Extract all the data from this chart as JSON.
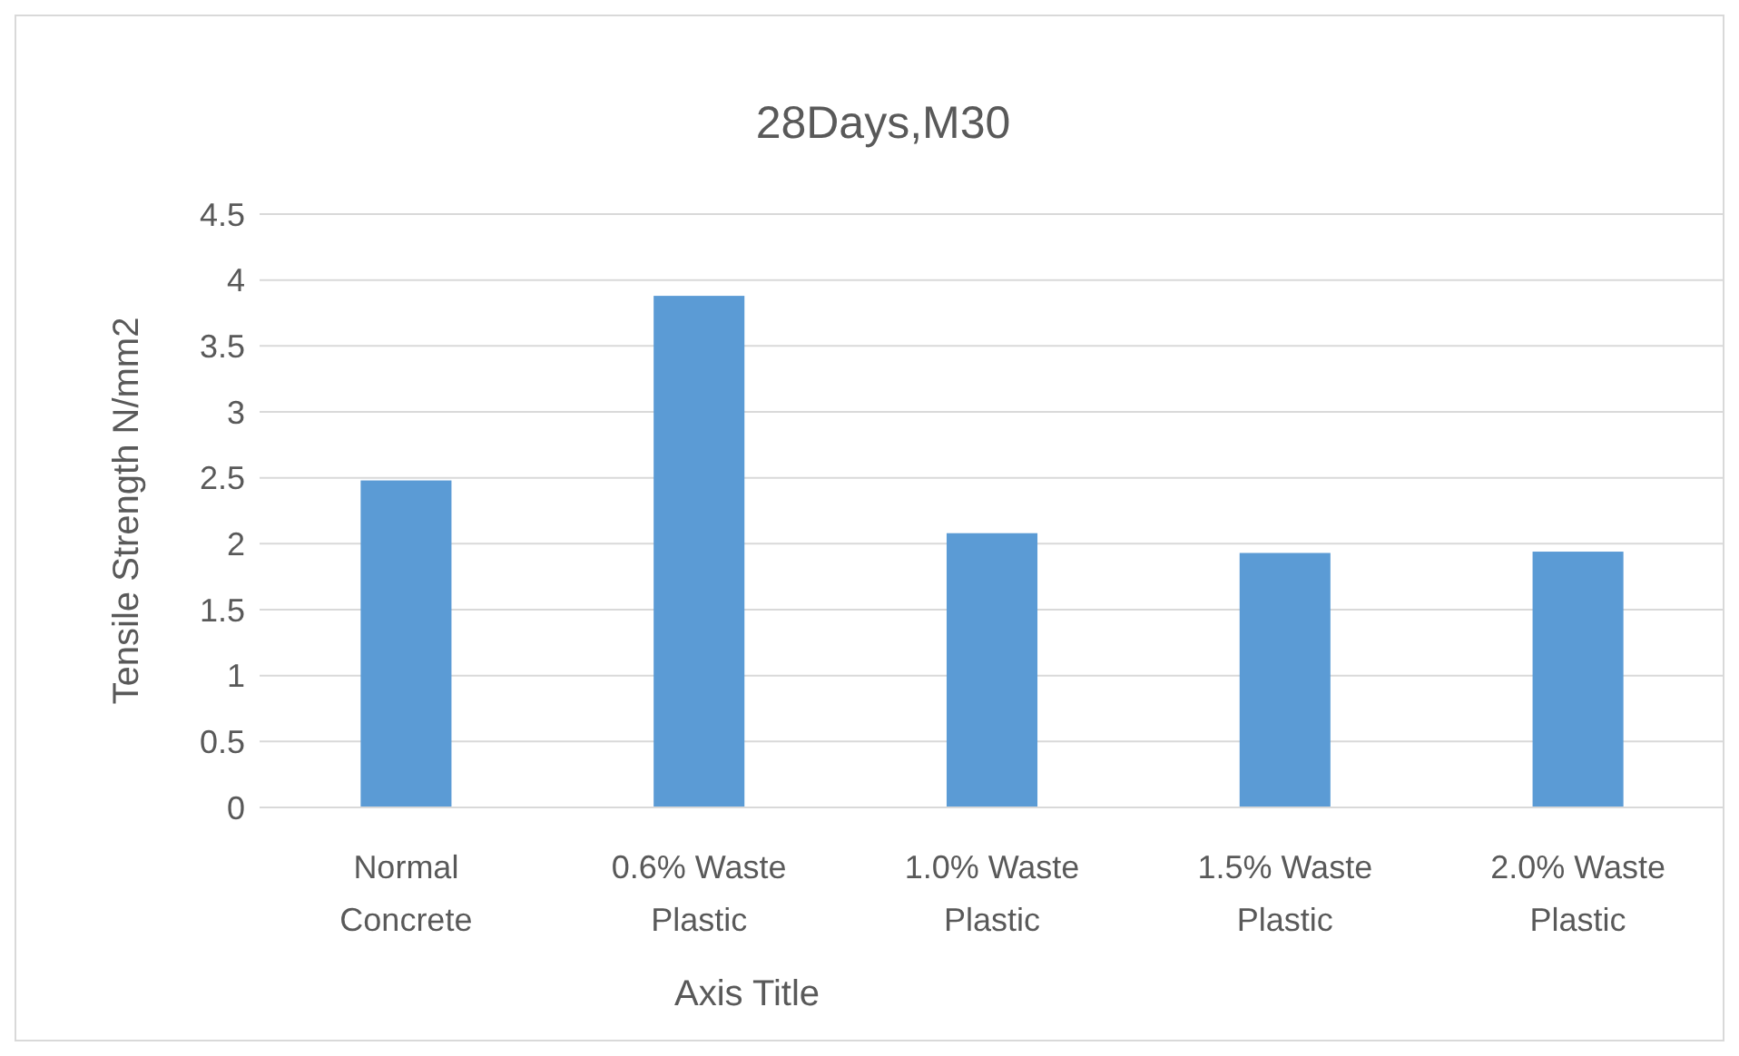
{
  "chart_data": {
    "type": "bar",
    "title": "28Days,M30",
    "xlabel": "Axis Title",
    "ylabel": "Tensile Strength N/mm2",
    "categories": [
      "Normal Concrete",
      "0.6% Waste Plastic",
      "1.0% Waste Plastic",
      "1.5% Waste Plastic",
      "2.0% Waste Plastic"
    ],
    "values": [
      2.48,
      3.88,
      2.08,
      1.93,
      1.94
    ],
    "color": "#5b9bd5",
    "ylim": [
      0,
      4.5
    ],
    "yticks": [
      {
        "value": 0,
        "label": "0"
      },
      {
        "value": 0.5,
        "label": "0.5"
      },
      {
        "value": 1,
        "label": "1"
      },
      {
        "value": 1.5,
        "label": "1.5"
      },
      {
        "value": 2,
        "label": "2"
      },
      {
        "value": 2.5,
        "label": "2.5"
      },
      {
        "value": 3,
        "label": "3"
      },
      {
        "value": 3.5,
        "label": "3.5"
      },
      {
        "value": 4,
        "label": "4"
      },
      {
        "value": 4.5,
        "label": "4.5"
      }
    ],
    "grid": "y"
  }
}
